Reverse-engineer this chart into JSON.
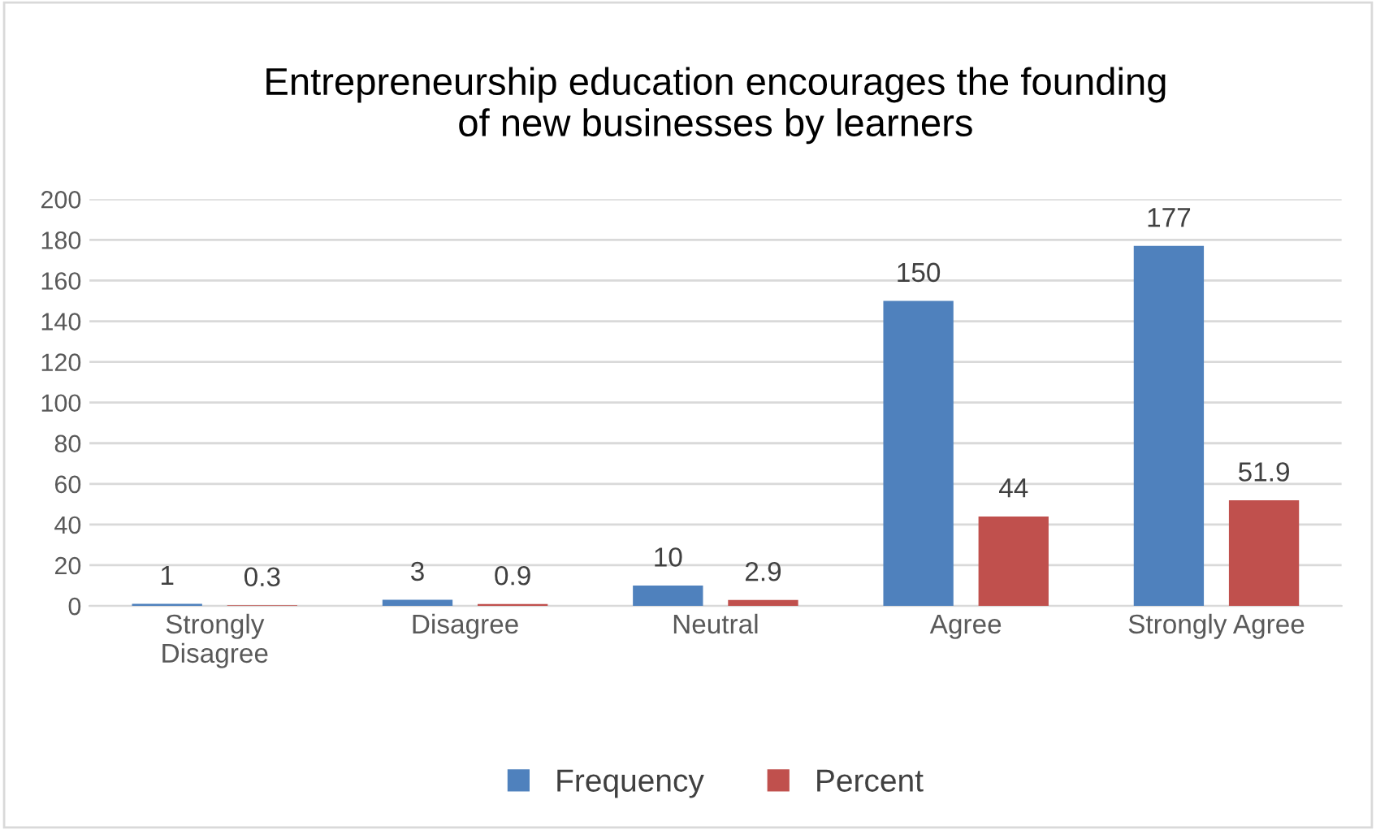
{
  "chart_data": {
    "type": "bar",
    "title": "Entrepreneurship education encourages the founding\nof new businesses by learners",
    "categories": [
      "Strongly\nDisagree",
      "Disagree",
      "Neutral",
      "Agree",
      "Strongly Agree"
    ],
    "series": [
      {
        "name": "Frequency",
        "color": "#4f81bd",
        "values": [
          1,
          3,
          10,
          150,
          177
        ]
      },
      {
        "name": "Percent",
        "color": "#c0504d",
        "values": [
          0.3,
          0.9,
          2.9,
          44,
          51.9
        ]
      }
    ],
    "ylim": [
      0,
      200
    ],
    "yticks": [
      0,
      20,
      40,
      60,
      80,
      100,
      120,
      140,
      160,
      180,
      200
    ],
    "grid": "y",
    "legend": "bottom",
    "data_labels": true
  }
}
